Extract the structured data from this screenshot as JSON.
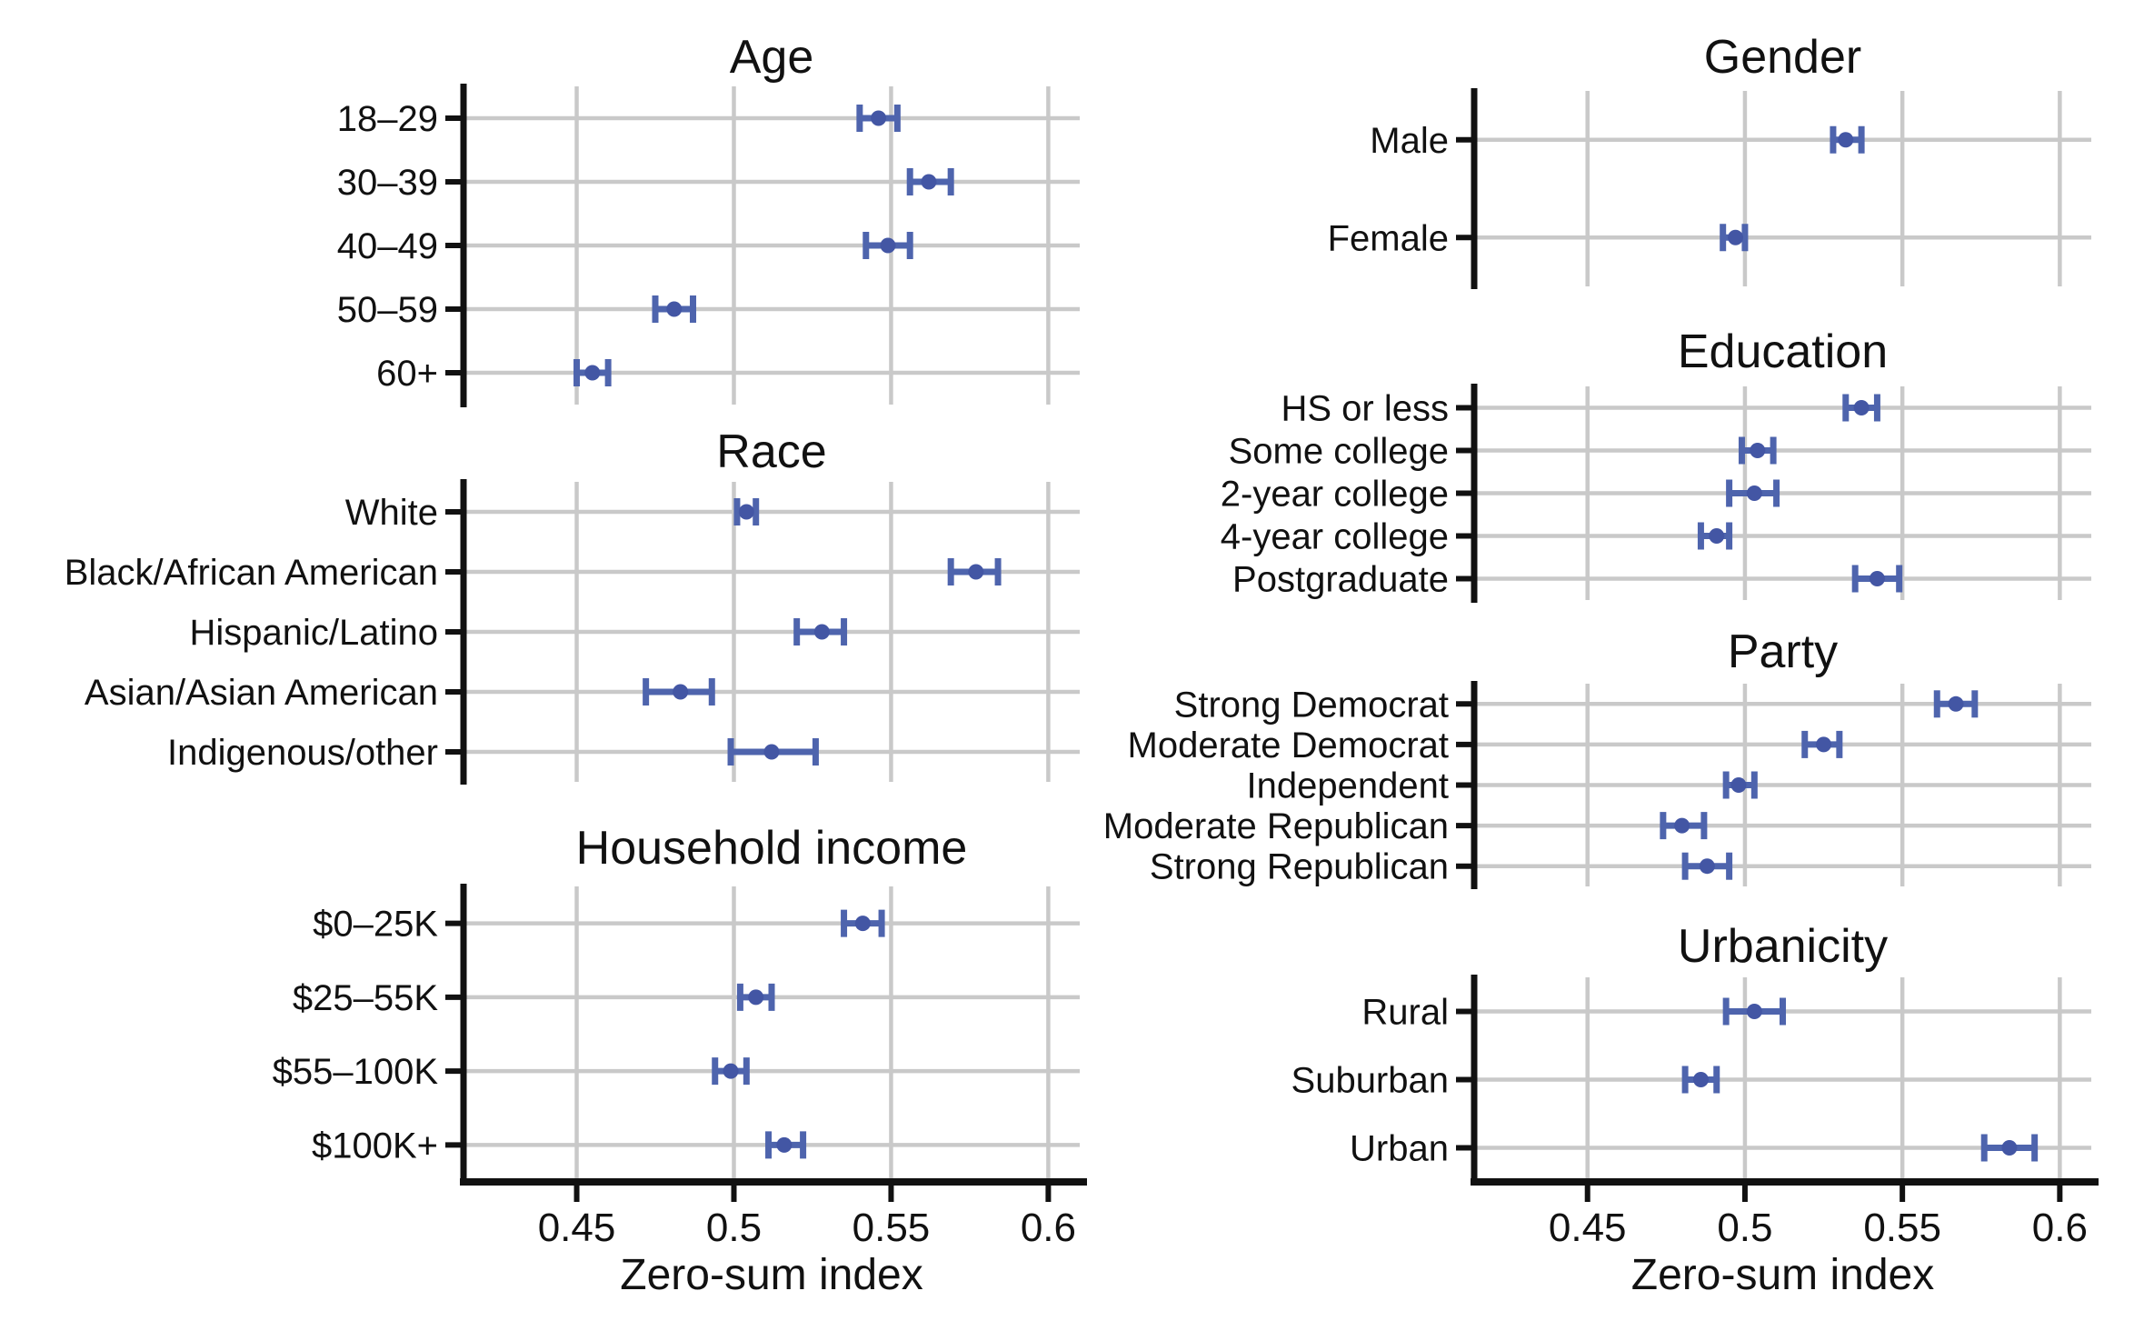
{
  "figure": {
    "xlabel": "Zero-sum index"
  },
  "chart_data": {
    "type": "scatter",
    "subtype": "dot-and-whisker",
    "title": "",
    "xlabel": "Zero-sum index",
    "ylabel": "",
    "x_ticks": [
      0.45,
      0.5,
      0.55,
      0.6
    ],
    "x_tick_labels": [
      "0.45",
      "0.5",
      "0.55",
      "0.6"
    ],
    "x_domain": [
      0.414,
      0.61
    ],
    "grid": true,
    "legend": "none",
    "error_bars": "95% CI",
    "colors": {
      "point": "#4356a4",
      "whisker": "#4e64ad",
      "gridline": "#c9c9c9",
      "axis": "#111111",
      "text": "#111111",
      "background": "#ffffff"
    },
    "columns": [
      {
        "panels": [
          {
            "title": "Age",
            "rows": [
              {
                "label": "18–29",
                "value": 0.546,
                "lo": 0.54,
                "hi": 0.552
              },
              {
                "label": "30–39",
                "value": 0.562,
                "lo": 0.556,
                "hi": 0.569
              },
              {
                "label": "40–49",
                "value": 0.549,
                "lo": 0.542,
                "hi": 0.556
              },
              {
                "label": "50–59",
                "value": 0.481,
                "lo": 0.475,
                "hi": 0.487
              },
              {
                "label": "60+",
                "value": 0.455,
                "lo": 0.45,
                "hi": 0.46
              }
            ]
          },
          {
            "title": "Race",
            "rows": [
              {
                "label": "White",
                "value": 0.504,
                "lo": 0.501,
                "hi": 0.507
              },
              {
                "label": "Black/African American",
                "value": 0.577,
                "lo": 0.569,
                "hi": 0.584
              },
              {
                "label": "Hispanic/Latino",
                "value": 0.528,
                "lo": 0.52,
                "hi": 0.535
              },
              {
                "label": "Asian/Asian American",
                "value": 0.483,
                "lo": 0.472,
                "hi": 0.493
              },
              {
                "label": "Indigenous/other",
                "value": 0.512,
                "lo": 0.499,
                "hi": 0.526
              }
            ]
          },
          {
            "title": "Household income",
            "rows": [
              {
                "label": "$0–25K",
                "value": 0.541,
                "lo": 0.535,
                "hi": 0.547
              },
              {
                "label": "$25–55K",
                "value": 0.507,
                "lo": 0.502,
                "hi": 0.512
              },
              {
                "label": "$55–100K",
                "value": 0.499,
                "lo": 0.494,
                "hi": 0.504
              },
              {
                "label": "$100K+",
                "value": 0.516,
                "lo": 0.511,
                "hi": 0.522
              }
            ]
          }
        ]
      },
      {
        "panels": [
          {
            "title": "Gender",
            "rows": [
              {
                "label": "Male",
                "value": 0.532,
                "lo": 0.528,
                "hi": 0.537
              },
              {
                "label": "Female",
                "value": 0.497,
                "lo": 0.493,
                "hi": 0.5
              }
            ]
          },
          {
            "title": "Education",
            "rows": [
              {
                "label": "HS or less",
                "value": 0.537,
                "lo": 0.532,
                "hi": 0.542
              },
              {
                "label": "Some college",
                "value": 0.504,
                "lo": 0.499,
                "hi": 0.509
              },
              {
                "label": "2-year college",
                "value": 0.503,
                "lo": 0.495,
                "hi": 0.51
              },
              {
                "label": "4-year college",
                "value": 0.491,
                "lo": 0.486,
                "hi": 0.495
              },
              {
                "label": "Postgraduate",
                "value": 0.542,
                "lo": 0.535,
                "hi": 0.549
              }
            ]
          },
          {
            "title": "Party",
            "rows": [
              {
                "label": "Strong Democrat",
                "value": 0.567,
                "lo": 0.561,
                "hi": 0.573
              },
              {
                "label": "Moderate Democrat",
                "value": 0.525,
                "lo": 0.519,
                "hi": 0.53
              },
              {
                "label": "Independent",
                "value": 0.498,
                "lo": 0.494,
                "hi": 0.503
              },
              {
                "label": "Moderate Republican",
                "value": 0.48,
                "lo": 0.474,
                "hi": 0.487
              },
              {
                "label": "Strong Republican",
                "value": 0.488,
                "lo": 0.481,
                "hi": 0.495
              }
            ]
          },
          {
            "title": "Urbanicity",
            "rows": [
              {
                "label": "Rural",
                "value": 0.503,
                "lo": 0.494,
                "hi": 0.512
              },
              {
                "label": "Suburban",
                "value": 0.486,
                "lo": 0.481,
                "hi": 0.491
              },
              {
                "label": "Urban",
                "value": 0.584,
                "lo": 0.576,
                "hi": 0.592
              }
            ]
          }
        ]
      }
    ]
  }
}
